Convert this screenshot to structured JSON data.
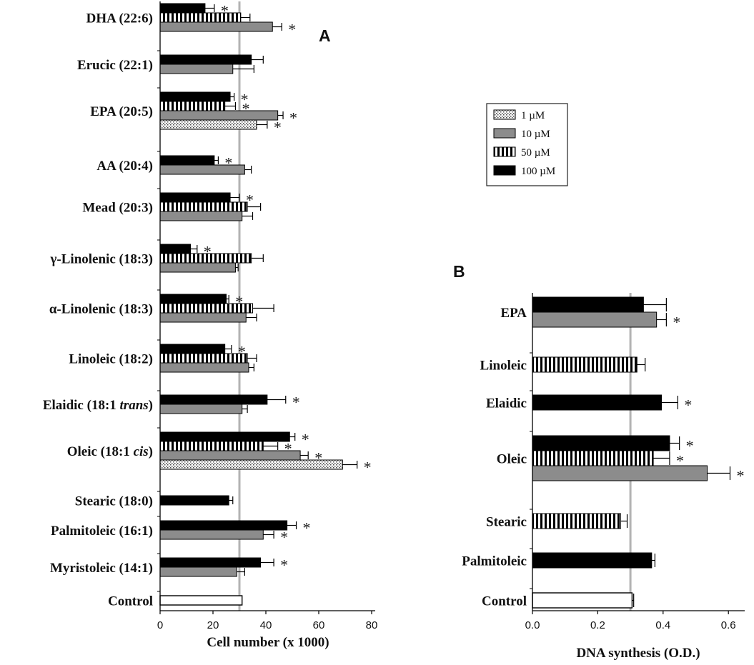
{
  "legend": [
    {
      "key": "1",
      "label": "1 µM",
      "pattern": "dots"
    },
    {
      "key": "10",
      "label": "10 µM",
      "pattern": "gray"
    },
    {
      "key": "50",
      "label": "50 µM",
      "pattern": "stripes"
    },
    {
      "key": "100",
      "label": "100 µM",
      "pattern": "black"
    }
  ],
  "chart_data": [
    {
      "type": "bar",
      "orientation": "horizontal",
      "panel": "A",
      "xlabel": "Cell number  (x 1000)",
      "xlim": [
        0,
        80
      ],
      "xticks": [
        "0",
        "20",
        "40",
        "60",
        "80"
      ],
      "reference_line": 30,
      "groups": [
        {
          "label": "DHA  (22:6)",
          "bars": [
            {
              "dose": "100",
              "value": 17,
              "err": 3.5,
              "sig": true
            },
            {
              "dose": "50",
              "value": 30.5,
              "err": 3.5,
              "sig": false
            },
            {
              "dose": "10",
              "value": 42.5,
              "err": 3.5,
              "sig": true
            }
          ]
        },
        {
          "label": "Erucic  (22:1)",
          "bars": [
            {
              "dose": "100",
              "value": 34.5,
              "err": 4.5,
              "sig": false
            },
            {
              "dose": "10",
              "value": 27.5,
              "err": 8,
              "sig": false
            }
          ]
        },
        {
          "label": "EPA  (20:5)",
          "bars": [
            {
              "dose": "100",
              "value": 26.5,
              "err": 1.5,
              "sig": true
            },
            {
              "dose": "50",
              "value": 24.5,
              "err": 4,
              "sig": true
            },
            {
              "dose": "10",
              "value": 44.5,
              "err": 2,
              "sig": true
            },
            {
              "dose": "1",
              "value": 36.5,
              "err": 4,
              "sig": true
            }
          ]
        },
        {
          "label": "AA  (20:4)",
          "bars": [
            {
              "dose": "100",
              "value": 20.5,
              "err": 1.5,
              "sig": true
            },
            {
              "dose": "10",
              "value": 32,
              "err": 2.5,
              "sig": false
            }
          ]
        },
        {
          "label": "Mead  (20:3)",
          "bars": [
            {
              "dose": "100",
              "value": 26.5,
              "err": 3.5,
              "sig": true
            },
            {
              "dose": "50",
              "value": 33,
              "err": 5,
              "sig": false
            },
            {
              "dose": "10",
              "value": 31,
              "err": 4,
              "sig": false
            }
          ]
        },
        {
          "label": "γ-Linolenic  (18:3)",
          "bars": [
            {
              "dose": "100",
              "value": 11.5,
              "err": 2.5,
              "sig": true
            },
            {
              "dose": "50",
              "value": 34.5,
              "err": 4.5,
              "sig": false
            },
            {
              "dose": "10",
              "value": 28.5,
              "err": 1,
              "sig": false
            }
          ]
        },
        {
          "label": "α-Linolenic  (18:3)",
          "bars": [
            {
              "dose": "100",
              "value": 25,
              "err": 1,
              "sig": true
            },
            {
              "dose": "50",
              "value": 35,
              "err": 8,
              "sig": false
            },
            {
              "dose": "10",
              "value": 32.5,
              "err": 4,
              "sig": false
            }
          ]
        },
        {
          "label": "Linoleic  (18:2)",
          "bars": [
            {
              "dose": "100",
              "value": 24.5,
              "err": 2.5,
              "sig": true
            },
            {
              "dose": "50",
              "value": 33,
              "err": 3.5,
              "sig": false
            },
            {
              "dose": "10",
              "value": 33.5,
              "err": 2,
              "sig": false
            }
          ]
        },
        {
          "label": "Elaidic  (18:1 trans)",
          "bars": [
            {
              "dose": "100",
              "value": 40.5,
              "err": 7,
              "sig": true
            },
            {
              "dose": "10",
              "value": 31,
              "err": 2,
              "sig": false
            }
          ]
        },
        {
          "label": "Oleic  (18:1 cis)",
          "bars": [
            {
              "dose": "100",
              "value": 49,
              "err": 2,
              "sig": true
            },
            {
              "dose": "50",
              "value": 39,
              "err": 5.5,
              "sig": true
            },
            {
              "dose": "10",
              "value": 53,
              "err": 3,
              "sig": true
            },
            {
              "dose": "1",
              "value": 69,
              "err": 5.5,
              "sig": true
            }
          ]
        },
        {
          "label": "Stearic  (18:0)",
          "bars": [
            {
              "dose": "100",
              "value": 26,
              "err": 1.5,
              "sig": false
            }
          ]
        },
        {
          "label": "Palmitoleic  (16:1)",
          "bars": [
            {
              "dose": "100",
              "value": 48,
              "err": 3.5,
              "sig": true
            },
            {
              "dose": "10",
              "value": 39,
              "err": 4,
              "sig": true
            }
          ]
        },
        {
          "label": "Myristoleic  (14:1)",
          "bars": [
            {
              "dose": "100",
              "value": 38,
              "err": 5,
              "sig": true
            },
            {
              "dose": "10",
              "value": 29,
              "err": 3,
              "sig": false
            }
          ]
        },
        {
          "label": "Control",
          "bars": [
            {
              "dose": "control",
              "value": 31,
              "err": 0,
              "sig": false
            }
          ]
        }
      ]
    },
    {
      "type": "bar",
      "orientation": "horizontal",
      "panel": "B",
      "xlabel": "DNA  synthesis (O.D.)",
      "xlim": [
        0,
        0.65
      ],
      "xticks": [
        "0.0",
        "0.2",
        "0.4",
        "0.6"
      ],
      "reference_line": 0.3,
      "groups": [
        {
          "label": "EPA",
          "bars": [
            {
              "dose": "100",
              "value": 0.34,
              "err": 0.07,
              "sig": false
            },
            {
              "dose": "10",
              "value": 0.38,
              "err": 0.03,
              "sig": true
            }
          ]
        },
        {
          "label": "Linoleic",
          "bars": [
            {
              "dose": "50",
              "value": 0.32,
              "err": 0.025,
              "sig": false
            }
          ]
        },
        {
          "label": "Elaidic",
          "bars": [
            {
              "dose": "100",
              "value": 0.395,
              "err": 0.05,
              "sig": true
            }
          ]
        },
        {
          "label": "Oleic",
          "bars": [
            {
              "dose": "100",
              "value": 0.42,
              "err": 0.03,
              "sig": true
            },
            {
              "dose": "50",
              "value": 0.37,
              "err": 0.05,
              "sig": true
            },
            {
              "dose": "10",
              "value": 0.535,
              "err": 0.07,
              "sig": true
            }
          ]
        },
        {
          "label": "Stearic",
          "bars": [
            {
              "dose": "50",
              "value": 0.27,
              "err": 0.02,
              "sig": false
            }
          ]
        },
        {
          "label": "Palmitoleic",
          "bars": [
            {
              "dose": "100",
              "value": 0.365,
              "err": 0.01,
              "sig": false
            }
          ]
        },
        {
          "label": "Control",
          "bars": [
            {
              "dose": "control",
              "value": 0.305,
              "err": 0.005,
              "sig": false
            }
          ]
        }
      ]
    }
  ]
}
